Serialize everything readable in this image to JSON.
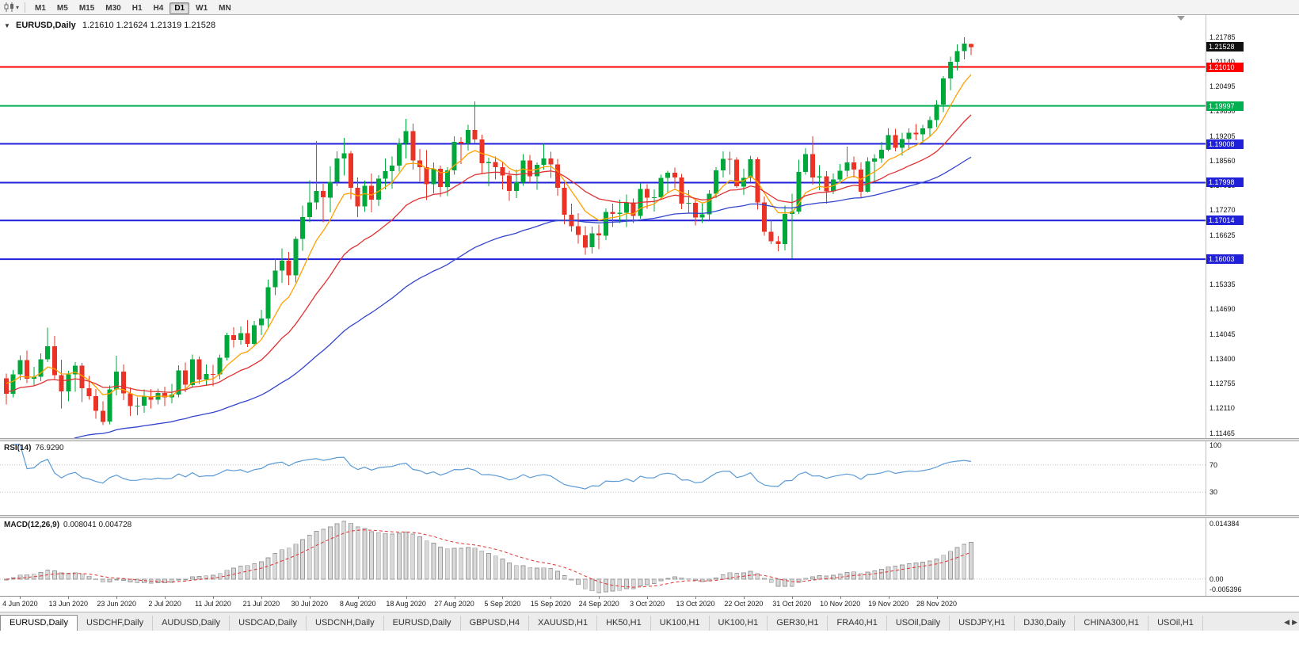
{
  "toolbar": {
    "timeframes": [
      "M1",
      "M5",
      "M15",
      "M30",
      "H1",
      "H4",
      "D1",
      "W1",
      "MN"
    ],
    "active_timeframe": "D1"
  },
  "main_chart": {
    "title": "EURUSD,Daily",
    "ohlc_line": "1.21610 1.21624 1.21319 1.21528",
    "ohlc": {
      "open": "1.21610",
      "high": "1.21624",
      "low": "1.21319",
      "close": "1.21528"
    },
    "price_axis": {
      "max": 1.21785,
      "min": 1.11465,
      "ticks": [
        "1.21785",
        "1.21140",
        "1.20495",
        "1.19850",
        "1.19205",
        "1.18560",
        "1.17915",
        "1.17270",
        "1.16625",
        "1.15980",
        "1.15335",
        "1.14690",
        "1.14045",
        "1.13400",
        "1.12755",
        "1.12110",
        "1.11465"
      ]
    },
    "current_price_badge": {
      "value": "1.21528",
      "color": "#111111"
    },
    "hlines": [
      {
        "value": 1.2101,
        "label": "1.21010",
        "color": "#ff0000",
        "width": 2
      },
      {
        "value": 1.19997,
        "label": "1.19997",
        "color": "#00b050",
        "width": 2
      },
      {
        "value": 1.19008,
        "label": "1.19008",
        "color": "#2020d8",
        "width": 2
      },
      {
        "value": 1.17998,
        "label": "1.17998",
        "color": "#2020d8",
        "width": 2
      },
      {
        "value": 1.17014,
        "label": "1.17014",
        "color": "#2020d8",
        "width": 2
      },
      {
        "value": 1.16003,
        "label": "1.16003",
        "color": "#2020d8",
        "width": 2
      }
    ],
    "colors": {
      "up": "#00a83c",
      "down": "#ea3325",
      "ma_fast": "#ffa000",
      "ma_mid": "#e03232",
      "ma_slow": "#3345cc"
    }
  },
  "chart_data": {
    "type": "candlestick",
    "symbol": "EURUSD",
    "timeframe": "Daily",
    "x_labels": [
      "4 Jun 2020",
      "13 Jun 2020",
      "23 Jun 2020",
      "2 Jul 2020",
      "11 Jul 2020",
      "21 Jul 2020",
      "30 Jul 2020",
      "8 Aug 2020",
      "18 Aug 2020",
      "27 Aug 2020",
      "5 Sep 2020",
      "15 Sep 2020",
      "24 Sep 2020",
      "3 Oct 2020",
      "13 Oct 2020",
      "22 Oct 2020",
      "31 Oct 2020",
      "10 Nov 2020",
      "19 Nov 2020",
      "28 Nov 2020"
    ],
    "x_label_indices": [
      2,
      9,
      16,
      23,
      30,
      37,
      44,
      51,
      58,
      65,
      72,
      79,
      86,
      93,
      100,
      107,
      114,
      121,
      128,
      135
    ],
    "candles": [
      [
        1.129,
        1.1302,
        1.1222,
        1.125
      ],
      [
        1.125,
        1.1312,
        1.124,
        1.13
      ],
      [
        1.13,
        1.135,
        1.1285,
        1.1337
      ],
      [
        1.1337,
        1.1362,
        1.1278,
        1.1289
      ],
      [
        1.1289,
        1.132,
        1.127,
        1.1294
      ],
      [
        1.1294,
        1.1355,
        1.1283,
        1.134
      ],
      [
        1.134,
        1.1422,
        1.1332,
        1.1374
      ],
      [
        1.1374,
        1.14,
        1.1288,
        1.1298
      ],
      [
        1.1298,
        1.1338,
        1.1212,
        1.1256
      ],
      [
        1.1256,
        1.131,
        1.123,
        1.13
      ],
      [
        1.13,
        1.1332,
        1.1255,
        1.1323
      ],
      [
        1.1323,
        1.133,
        1.1228,
        1.1264
      ],
      [
        1.1264,
        1.1296,
        1.1234,
        1.1244
      ],
      [
        1.1244,
        1.1262,
        1.1185,
        1.1205
      ],
      [
        1.1205,
        1.123,
        1.1168,
        1.1177
      ],
      [
        1.1177,
        1.1271,
        1.117,
        1.1261
      ],
      [
        1.1261,
        1.1349,
        1.1246,
        1.1308
      ],
      [
        1.1308,
        1.1326,
        1.1233,
        1.1251
      ],
      [
        1.1251,
        1.1266,
        1.1192,
        1.1218
      ],
      [
        1.1218,
        1.124,
        1.1194,
        1.1219
      ],
      [
        1.1219,
        1.1261,
        1.12,
        1.1242
      ],
      [
        1.1242,
        1.1262,
        1.1212,
        1.1234
      ],
      [
        1.1234,
        1.1263,
        1.1222,
        1.1252
      ],
      [
        1.1252,
        1.1268,
        1.1218,
        1.124
      ],
      [
        1.124,
        1.1275,
        1.1225,
        1.1248
      ],
      [
        1.1248,
        1.1324,
        1.124,
        1.1311
      ],
      [
        1.1311,
        1.1331,
        1.1254,
        1.1273
      ],
      [
        1.1273,
        1.1352,
        1.1265,
        1.134
      ],
      [
        1.134,
        1.1347,
        1.1276,
        1.1287
      ],
      [
        1.1287,
        1.1326,
        1.127,
        1.1301
      ],
      [
        1.1301,
        1.1325,
        1.1269,
        1.13
      ],
      [
        1.13,
        1.1352,
        1.1288,
        1.1344
      ],
      [
        1.1344,
        1.1409,
        1.1336,
        1.1402
      ],
      [
        1.1402,
        1.1423,
        1.137,
        1.139
      ],
      [
        1.139,
        1.1425,
        1.1378,
        1.1408
      ],
      [
        1.1408,
        1.1442,
        1.1371,
        1.138
      ],
      [
        1.138,
        1.144,
        1.1376,
        1.1428
      ],
      [
        1.1428,
        1.1468,
        1.1402,
        1.1446
      ],
      [
        1.1446,
        1.1547,
        1.1422,
        1.1527
      ],
      [
        1.1527,
        1.1601,
        1.1507,
        1.1571
      ],
      [
        1.1571,
        1.1628,
        1.1539,
        1.1596
      ],
      [
        1.1596,
        1.1619,
        1.1532,
        1.1558
      ],
      [
        1.1558,
        1.1659,
        1.154,
        1.1653
      ],
      [
        1.1653,
        1.174,
        1.1622,
        1.171
      ],
      [
        1.171,
        1.1806,
        1.1697,
        1.1748
      ],
      [
        1.1748,
        1.1908,
        1.173,
        1.1778
      ],
      [
        1.1778,
        1.1797,
        1.1697,
        1.1761
      ],
      [
        1.1761,
        1.1842,
        1.1722,
        1.1802
      ],
      [
        1.1802,
        1.1881,
        1.179,
        1.1863
      ],
      [
        1.1863,
        1.1916,
        1.1818,
        1.1876
      ],
      [
        1.1876,
        1.1882,
        1.1756,
        1.1786
      ],
      [
        1.1786,
        1.1813,
        1.171,
        1.1738
      ],
      [
        1.1738,
        1.1805,
        1.1723,
        1.1792
      ],
      [
        1.1792,
        1.1823,
        1.1722,
        1.1755
      ],
      [
        1.1755,
        1.1819,
        1.1739,
        1.181
      ],
      [
        1.181,
        1.1863,
        1.1782,
        1.183
      ],
      [
        1.183,
        1.1868,
        1.1784,
        1.1844
      ],
      [
        1.1844,
        1.1915,
        1.1829,
        1.1902
      ],
      [
        1.1902,
        1.1966,
        1.1863,
        1.1934
      ],
      [
        1.1934,
        1.1954,
        1.1834,
        1.1858
      ],
      [
        1.1858,
        1.1887,
        1.1803,
        1.184
      ],
      [
        1.184,
        1.1884,
        1.1754,
        1.1796
      ],
      [
        1.1796,
        1.1852,
        1.1772,
        1.1836
      ],
      [
        1.1836,
        1.1844,
        1.1763,
        1.1788
      ],
      [
        1.1788,
        1.184,
        1.1765,
        1.1832
      ],
      [
        1.1832,
        1.192,
        1.182,
        1.1906
      ],
      [
        1.1906,
        1.1918,
        1.1848,
        1.1902
      ],
      [
        1.1902,
        1.195,
        1.1883,
        1.1937
      ],
      [
        1.1937,
        1.2011,
        1.1902,
        1.1912
      ],
      [
        1.1912,
        1.1925,
        1.1822,
        1.185
      ],
      [
        1.185,
        1.1865,
        1.179,
        1.1853
      ],
      [
        1.1853,
        1.1868,
        1.1808,
        1.184
      ],
      [
        1.184,
        1.1854,
        1.1782,
        1.1818
      ],
      [
        1.1818,
        1.1831,
        1.1752,
        1.1778
      ],
      [
        1.1778,
        1.1834,
        1.176,
        1.1801
      ],
      [
        1.1801,
        1.1874,
        1.1792,
        1.1858
      ],
      [
        1.1858,
        1.1872,
        1.18,
        1.1816
      ],
      [
        1.1816,
        1.1852,
        1.1781,
        1.1846
      ],
      [
        1.1846,
        1.1901,
        1.1834,
        1.1863
      ],
      [
        1.1863,
        1.188,
        1.1812,
        1.1847
      ],
      [
        1.1847,
        1.1862,
        1.1766,
        1.1786
      ],
      [
        1.1786,
        1.1798,
        1.1691,
        1.1716
      ],
      [
        1.1716,
        1.1745,
        1.1672,
        1.1686
      ],
      [
        1.1686,
        1.172,
        1.1641,
        1.1663
      ],
      [
        1.1663,
        1.1686,
        1.1612,
        1.1631
      ],
      [
        1.1631,
        1.1685,
        1.1615,
        1.1668
      ],
      [
        1.1668,
        1.169,
        1.1626,
        1.1662
      ],
      [
        1.1662,
        1.1733,
        1.165,
        1.1723
      ],
      [
        1.1723,
        1.1745,
        1.1684,
        1.1718
      ],
      [
        1.1718,
        1.1755,
        1.1694,
        1.1721
      ],
      [
        1.1721,
        1.1769,
        1.1684,
        1.1748
      ],
      [
        1.1748,
        1.1758,
        1.1695,
        1.1713
      ],
      [
        1.1713,
        1.1798,
        1.1706,
        1.1783
      ],
      [
        1.1783,
        1.1796,
        1.1732,
        1.176
      ],
      [
        1.176,
        1.1782,
        1.1724,
        1.1762
      ],
      [
        1.1762,
        1.182,
        1.1754,
        1.1812
      ],
      [
        1.1812,
        1.1831,
        1.1775,
        1.1826
      ],
      [
        1.1826,
        1.1839,
        1.1785,
        1.1813
      ],
      [
        1.1813,
        1.1822,
        1.1731,
        1.1745
      ],
      [
        1.1745,
        1.178,
        1.172,
        1.1747
      ],
      [
        1.1747,
        1.1757,
        1.1688,
        1.1709
      ],
      [
        1.1709,
        1.1745,
        1.1694,
        1.1717
      ],
      [
        1.1717,
        1.178,
        1.1703,
        1.1771
      ],
      [
        1.1771,
        1.184,
        1.176,
        1.1832
      ],
      [
        1.1832,
        1.1881,
        1.1813,
        1.1862
      ],
      [
        1.1862,
        1.188,
        1.182,
        1.186
      ],
      [
        1.186,
        1.1866,
        1.1786,
        1.179
      ],
      [
        1.179,
        1.1836,
        1.1768,
        1.1812
      ],
      [
        1.1812,
        1.187,
        1.18,
        1.1861
      ],
      [
        1.1861,
        1.1866,
        1.173,
        1.1748
      ],
      [
        1.1748,
        1.1764,
        1.1661,
        1.1672
      ],
      [
        1.1672,
        1.1704,
        1.164,
        1.1647
      ],
      [
        1.1647,
        1.166,
        1.1621,
        1.164
      ],
      [
        1.164,
        1.174,
        1.1623,
        1.1718
      ],
      [
        1.1718,
        1.1771,
        1.1603,
        1.1724
      ],
      [
        1.1724,
        1.186,
        1.1718,
        1.1828
      ],
      [
        1.1828,
        1.189,
        1.182,
        1.1874
      ],
      [
        1.1874,
        1.192,
        1.1795,
        1.1813
      ],
      [
        1.1813,
        1.1845,
        1.178,
        1.1816
      ],
      [
        1.1816,
        1.183,
        1.1745,
        1.1777
      ],
      [
        1.1777,
        1.1824,
        1.177,
        1.1808
      ],
      [
        1.1808,
        1.1848,
        1.18,
        1.1831
      ],
      [
        1.1831,
        1.1894,
        1.1815,
        1.1852
      ],
      [
        1.1852,
        1.1868,
        1.1813,
        1.1834
      ],
      [
        1.1834,
        1.1852,
        1.1762,
        1.1776
      ],
      [
        1.1776,
        1.1866,
        1.1774,
        1.1855
      ],
      [
        1.1855,
        1.1874,
        1.18,
        1.1863
      ],
      [
        1.1863,
        1.1906,
        1.1851,
        1.1885
      ],
      [
        1.1885,
        1.1941,
        1.1881,
        1.1924
      ],
      [
        1.1924,
        1.194,
        1.1881,
        1.1891
      ],
      [
        1.1891,
        1.193,
        1.187,
        1.1913
      ],
      [
        1.1913,
        1.1941,
        1.1885,
        1.193
      ],
      [
        1.193,
        1.1952,
        1.191,
        1.1926
      ],
      [
        1.1926,
        1.195,
        1.1902,
        1.1941
      ],
      [
        1.1941,
        1.1972,
        1.192,
        1.1963
      ],
      [
        1.1963,
        1.2014,
        1.1944,
        1.2003
      ],
      [
        1.2003,
        1.2077,
        1.1983,
        1.2071
      ],
      [
        1.2071,
        1.2128,
        1.204,
        1.2115
      ],
      [
        1.2115,
        1.216,
        1.2092,
        1.2142
      ],
      [
        1.2142,
        1.2178,
        1.2121,
        1.2162
      ],
      [
        1.2161,
        1.2162,
        1.2132,
        1.2153
      ]
    ],
    "moving_averages": [
      {
        "period": 8,
        "color": "#ffa000",
        "seed": 1.1285
      },
      {
        "period": 21,
        "color": "#e03232",
        "seed": 1.1255
      },
      {
        "period": 55,
        "color": "#3345cc",
        "seed": 1.105
      }
    ],
    "indicators": {
      "rsi": {
        "label": "RSI(14)",
        "value": "76.9290",
        "period": 14,
        "line_color": "#5b9bd5",
        "levels": [
          70,
          30
        ],
        "axis_labels": [
          {
            "text": "100",
            "value": 100
          },
          {
            "text": "70",
            "value": 70
          },
          {
            "text": "30",
            "value": 30
          }
        ]
      },
      "macd": {
        "label": "MACD(12,26,9)",
        "value_line": "0.008041 0.004728",
        "fast": 12,
        "slow": 26,
        "signal": 9,
        "bar_fill": "#d9d9d9",
        "bar_stroke": "#9a9a9a",
        "signal_color": "#e03232",
        "axis_top_label": "0.014384",
        "axis_zero_label": "0.00",
        "axis_bottom_label": "-0.005396"
      }
    }
  },
  "tabs": {
    "items": [
      {
        "label": "EURUSD,Daily",
        "active": true
      },
      {
        "label": "USDCHF,Daily"
      },
      {
        "label": "AUDUSD,Daily"
      },
      {
        "label": "USDCAD,Daily"
      },
      {
        "label": "USDCNH,Daily"
      },
      {
        "label": "EURUSD,Daily"
      },
      {
        "label": "GBPUSD,H4"
      },
      {
        "label": "XAUUSD,H1"
      },
      {
        "label": "HK50,H1"
      },
      {
        "label": "UK100,H1"
      },
      {
        "label": "UK100,H1"
      },
      {
        "label": "GER30,H1"
      },
      {
        "label": "FRA40,H1"
      },
      {
        "label": "USOil,Daily"
      },
      {
        "label": "USDJPY,H1"
      },
      {
        "label": "DJ30,Daily"
      },
      {
        "label": "CHINA300,H1"
      },
      {
        "label": "USOil,H1"
      }
    ]
  }
}
